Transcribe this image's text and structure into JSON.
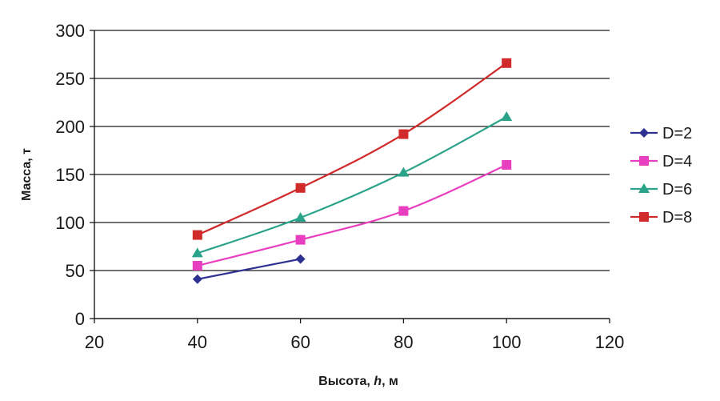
{
  "chart_data": {
    "type": "line",
    "title": "",
    "xlabel": {
      "prefix": "Высота, ",
      "italic": "h",
      "suffix": ", м"
    },
    "ylabel": "Масса, т",
    "xlim": [
      20,
      120
    ],
    "ylim": [
      0,
      300
    ],
    "xticks": [
      20,
      40,
      60,
      80,
      100,
      120
    ],
    "yticks": [
      0,
      50,
      100,
      150,
      200,
      250,
      300
    ],
    "grid": "horizontal",
    "legend_position": "right",
    "series": [
      {
        "name": "D=2",
        "color": "#2e3192",
        "marker": "diamond",
        "x": [
          40,
          60
        ],
        "y": [
          41,
          62
        ]
      },
      {
        "name": "D=4",
        "color": "#e83fc0",
        "marker": "square",
        "x": [
          40,
          60,
          80,
          100
        ],
        "y": [
          55,
          82,
          112,
          160
        ]
      },
      {
        "name": "D=6",
        "color": "#2aa38a",
        "marker": "triangle",
        "x": [
          40,
          60,
          80,
          100
        ],
        "y": [
          68,
          105,
          152,
          210
        ]
      },
      {
        "name": "D=8",
        "color": "#d02a2a",
        "marker": "square",
        "x": [
          40,
          60,
          80,
          100
        ],
        "y": [
          87,
          136,
          192,
          266
        ]
      }
    ]
  }
}
